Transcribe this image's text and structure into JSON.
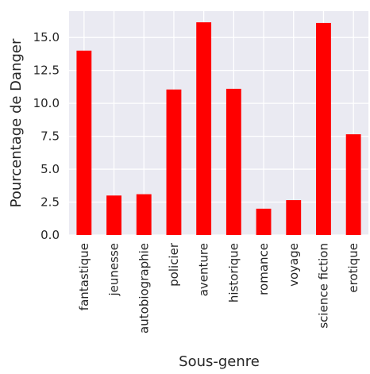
{
  "chart_data": {
    "type": "bar",
    "title": "",
    "xlabel": "Sous-genre",
    "ylabel": "Pourcentage de Danger",
    "categories": [
      "fantastique",
      "jeunesse",
      "autobiographie",
      "policier",
      "aventure",
      "historique",
      "romance",
      "voyage",
      "science fiction",
      "erotique"
    ],
    "values": [
      14.0,
      3.0,
      3.1,
      11.05,
      16.15,
      11.1,
      2.0,
      2.65,
      16.1,
      7.65
    ],
    "ylim": [
      0,
      17.0
    ],
    "yticks": [
      "0.0",
      "2.5",
      "5.0",
      "7.5",
      "10.0",
      "12.5",
      "15.0"
    ],
    "ytick_values": [
      0,
      2.5,
      5,
      7.5,
      10,
      12.5,
      15
    ],
    "grid": true,
    "bar_color": "#ff0000",
    "plot_background": "#eaeaf2",
    "grid_color": "#ffffff"
  }
}
